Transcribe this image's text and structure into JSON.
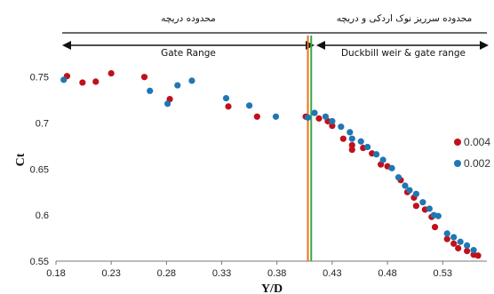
{
  "chart_data": {
    "type": "scatter",
    "xlabel": "Y/D",
    "ylabel": "Ct",
    "xlim": [
      0.18,
      0.57
    ],
    "ylim": [
      0.55,
      0.77
    ],
    "x_ticks": [
      "0.18",
      "0.23",
      "0.28",
      "0.33",
      "0.38",
      "0.43",
      "0.48",
      "0.53"
    ],
    "y_ticks": [
      "0.55",
      "0.6",
      "0.65",
      "0.7",
      "0.75"
    ],
    "grid": false,
    "legend_position": "right",
    "regions": [
      {
        "label_top": "محدوده دریچه",
        "label_bottom": "Gate Range",
        "x_range": [
          0.18,
          0.41
        ]
      },
      {
        "label_top": "محدوده سرریز نوک اردکی و دریچه",
        "label_bottom": "Duckbill weir & gate range",
        "x_range": [
          0.41,
          0.57
        ]
      }
    ],
    "boundary_lines": [
      {
        "x": 0.408,
        "color": "#e8731c"
      },
      {
        "x": 0.411,
        "color": "#3aa845"
      }
    ],
    "series": [
      {
        "name": "0.004",
        "color": "#c0111b",
        "points": [
          [
            0.19,
            0.751
          ],
          [
            0.204,
            0.744
          ],
          [
            0.216,
            0.745
          ],
          [
            0.23,
            0.754
          ],
          [
            0.26,
            0.75
          ],
          [
            0.283,
            0.726
          ],
          [
            0.336,
            0.718
          ],
          [
            0.362,
            0.707
          ],
          [
            0.406,
            0.707
          ],
          [
            0.418,
            0.705
          ],
          [
            0.426,
            0.702
          ],
          [
            0.43,
            0.697
          ],
          [
            0.44,
            0.683
          ],
          [
            0.448,
            0.671
          ],
          [
            0.448,
            0.676
          ],
          [
            0.458,
            0.673
          ],
          [
            0.466,
            0.667
          ],
          [
            0.474,
            0.655
          ],
          [
            0.48,
            0.653
          ],
          [
            0.492,
            0.638
          ],
          [
            0.498,
            0.625
          ],
          [
            0.504,
            0.619
          ],
          [
            0.506,
            0.61
          ],
          [
            0.514,
            0.606
          ],
          [
            0.52,
            0.598
          ],
          [
            0.523,
            0.587
          ],
          [
            0.534,
            0.574
          ],
          [
            0.54,
            0.569
          ],
          [
            0.544,
            0.564
          ],
          [
            0.552,
            0.561
          ],
          [
            0.558,
            0.557
          ],
          [
            0.562,
            0.556
          ]
        ]
      },
      {
        "name": "0.002",
        "color": "#1f77b4",
        "points": [
          [
            0.187,
            0.747
          ],
          [
            0.265,
            0.735
          ],
          [
            0.281,
            0.721
          ],
          [
            0.29,
            0.741
          ],
          [
            0.303,
            0.746
          ],
          [
            0.334,
            0.727
          ],
          [
            0.355,
            0.719
          ],
          [
            0.379,
            0.707
          ],
          [
            0.408,
            0.706
          ],
          [
            0.414,
            0.711
          ],
          [
            0.424,
            0.707
          ],
          [
            0.43,
            0.702
          ],
          [
            0.438,
            0.696
          ],
          [
            0.446,
            0.69
          ],
          [
            0.448,
            0.683
          ],
          [
            0.456,
            0.68
          ],
          [
            0.462,
            0.674
          ],
          [
            0.47,
            0.666
          ],
          [
            0.476,
            0.66
          ],
          [
            0.484,
            0.651
          ],
          [
            0.49,
            0.641
          ],
          [
            0.496,
            0.632
          ],
          [
            0.5,
            0.627
          ],
          [
            0.506,
            0.623
          ],
          [
            0.512,
            0.614
          ],
          [
            0.518,
            0.607
          ],
          [
            0.522,
            0.6
          ],
          [
            0.526,
            0.599
          ],
          [
            0.534,
            0.58
          ],
          [
            0.54,
            0.576
          ],
          [
            0.546,
            0.571
          ],
          [
            0.552,
            0.567
          ],
          [
            0.558,
            0.562
          ]
        ]
      }
    ]
  }
}
